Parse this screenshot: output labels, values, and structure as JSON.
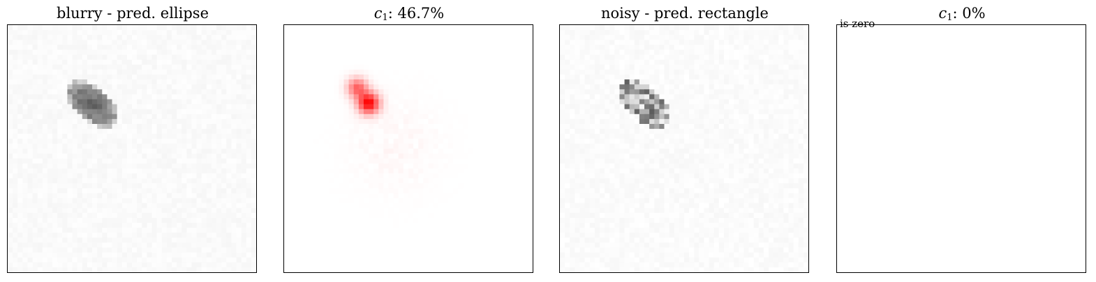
{
  "panels": [
    {
      "title": "blurry - pred. ellipse",
      "kind": "grayscale-image",
      "style": "blurry"
    },
    {
      "title_prefix": "c",
      "title_sub": "1",
      "title_value": ": 46.7%",
      "kind": "attribution-map",
      "color": "#ff0000"
    },
    {
      "title": "noisy - pred. rectangle",
      "kind": "grayscale-image",
      "style": "noisy"
    },
    {
      "title_prefix": "c",
      "title_sub": "1",
      "title_value": ": 0%",
      "kind": "empty-map",
      "note": "is zero"
    }
  ]
}
